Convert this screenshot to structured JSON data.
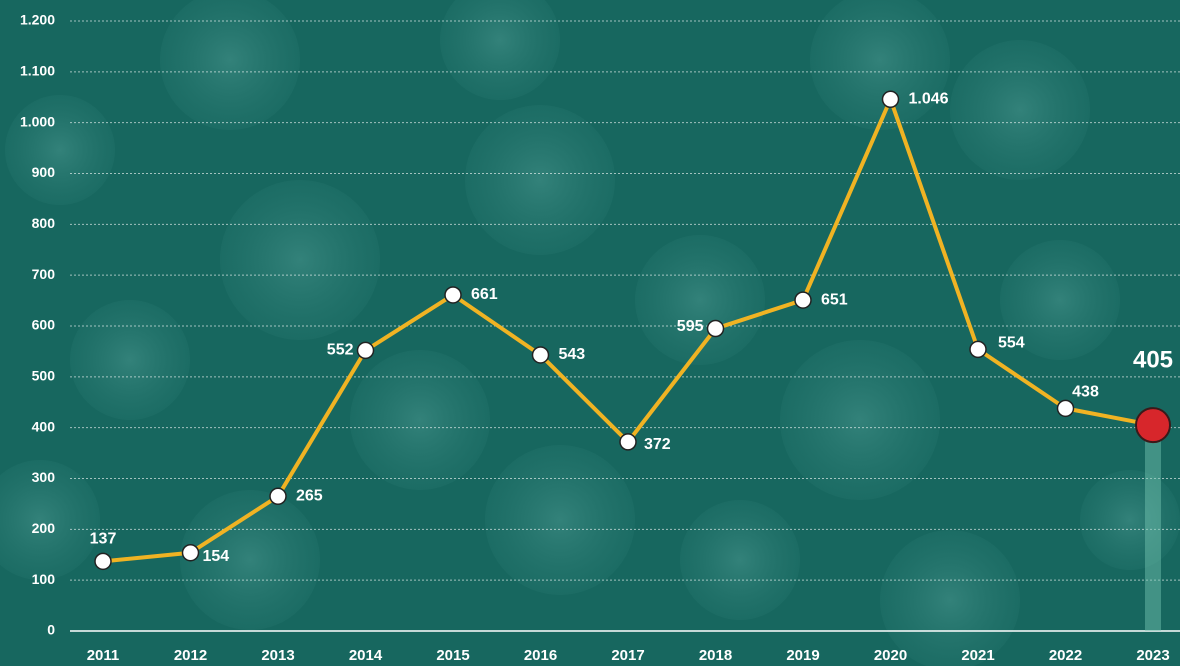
{
  "chart_data": {
    "type": "line",
    "categories": [
      "2011",
      "2012",
      "2013",
      "2014",
      "2015",
      "2016",
      "2017",
      "2018",
      "2019",
      "2020",
      "2021",
      "2022",
      "2023"
    ],
    "values": [
      137,
      154,
      265,
      552,
      661,
      543,
      372,
      595,
      651,
      1046,
      554,
      438,
      405
    ],
    "value_labels": [
      "137",
      "154",
      "265",
      "552",
      "661",
      "543",
      "372",
      "595",
      "651",
      "1.046",
      "554",
      "438",
      "405"
    ],
    "color": "#f0b323",
    "highlight_color": "#d7262b",
    "ylim": [
      0,
      1200
    ],
    "yticks": [
      0,
      100,
      200,
      300,
      400,
      500,
      600,
      700,
      800,
      900,
      {
        "value": 1000,
        "label": "1.000"
      },
      {
        "value": 1100,
        "label": "1.100"
      },
      {
        "value": 1200,
        "label": "1.200"
      }
    ],
    "grid": true
  }
}
